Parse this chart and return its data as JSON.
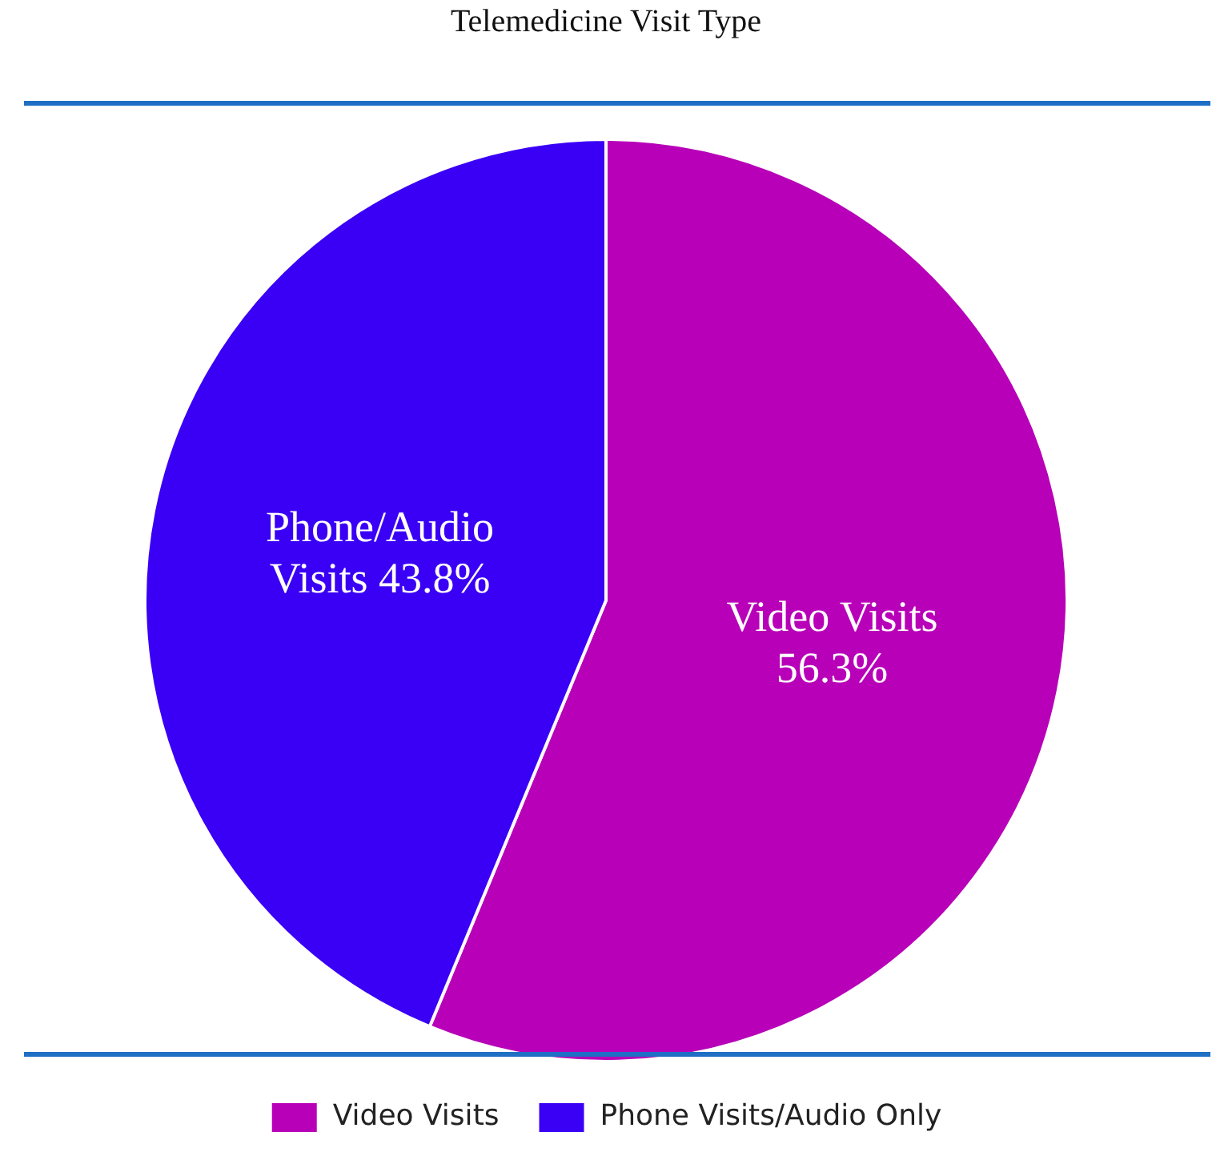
{
  "chart_data": {
    "type": "pie",
    "title": "Telemedicine Visit Type",
    "categories": [
      "Video Visits",
      "Phone Visits/Audio Only"
    ],
    "values": [
      56.3,
      43.8
    ],
    "colors": [
      "#b800b8",
      "#3a00f5"
    ],
    "value_labels": [
      "Video Visits\n56.3%",
      "Phone/Audio\nVisits 43.8%"
    ],
    "legend": "bottom"
  }
}
